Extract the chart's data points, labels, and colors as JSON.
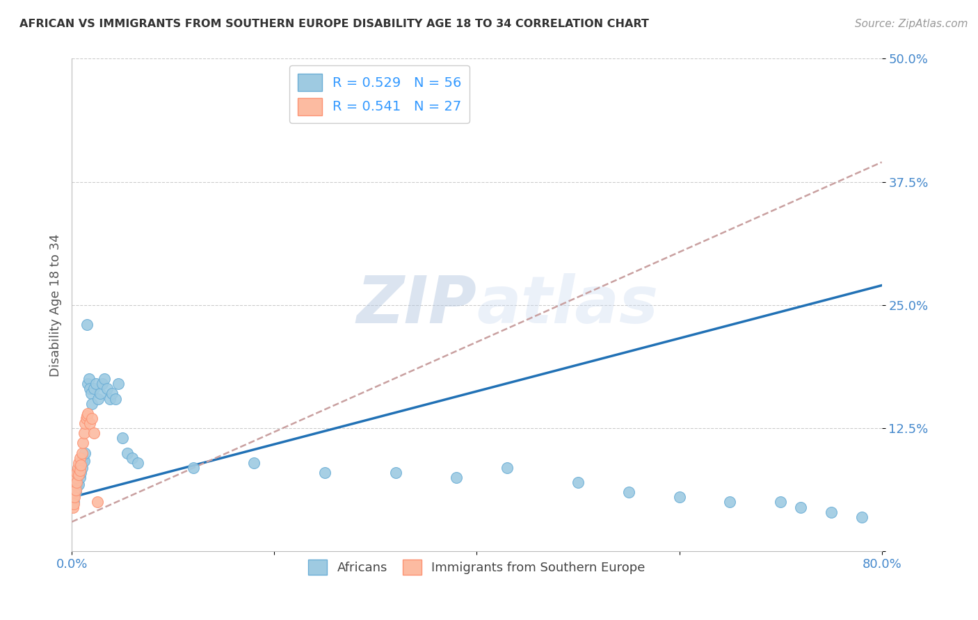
{
  "title": "AFRICAN VS IMMIGRANTS FROM SOUTHERN EUROPE DISABILITY AGE 18 TO 34 CORRELATION CHART",
  "source": "Source: ZipAtlas.com",
  "xlabel_africans": "Africans",
  "xlabel_immigrants": "Immigrants from Southern Europe",
  "ylabel": "Disability Age 18 to 34",
  "watermark": "ZIPatlas",
  "R_africans": 0.529,
  "N_africans": 56,
  "R_immigrants": 0.541,
  "N_immigrants": 27,
  "xlim": [
    0.0,
    0.8
  ],
  "ylim": [
    0.0,
    0.5
  ],
  "african_color": "#9ecae1",
  "african_edge_color": "#6baed6",
  "immigrant_color": "#fcbba1",
  "immigrant_edge_color": "#fc9272",
  "trend_african_color": "#2171b5",
  "trend_immigrant_color": "#c9a0a0",
  "background_color": "#ffffff",
  "grid_color": "#cccccc",
  "africans_x": [
    0.001,
    0.002,
    0.002,
    0.003,
    0.003,
    0.004,
    0.004,
    0.005,
    0.005,
    0.006,
    0.006,
    0.007,
    0.007,
    0.008,
    0.008,
    0.009,
    0.01,
    0.01,
    0.011,
    0.012,
    0.013,
    0.015,
    0.016,
    0.017,
    0.018,
    0.019,
    0.02,
    0.022,
    0.024,
    0.026,
    0.028,
    0.03,
    0.032,
    0.035,
    0.038,
    0.04,
    0.043,
    0.046,
    0.05,
    0.055,
    0.06,
    0.065,
    0.12,
    0.18,
    0.25,
    0.32,
    0.38,
    0.43,
    0.5,
    0.55,
    0.6,
    0.65,
    0.7,
    0.72,
    0.75,
    0.78
  ],
  "africans_y": [
    0.055,
    0.05,
    0.065,
    0.058,
    0.072,
    0.06,
    0.075,
    0.065,
    0.075,
    0.07,
    0.08,
    0.068,
    0.082,
    0.075,
    0.088,
    0.08,
    0.09,
    0.085,
    0.095,
    0.092,
    0.1,
    0.23,
    0.17,
    0.175,
    0.165,
    0.16,
    0.15,
    0.165,
    0.17,
    0.155,
    0.16,
    0.17,
    0.175,
    0.165,
    0.155,
    0.16,
    0.155,
    0.17,
    0.115,
    0.1,
    0.095,
    0.09,
    0.085,
    0.09,
    0.08,
    0.08,
    0.075,
    0.085,
    0.07,
    0.06,
    0.055,
    0.05,
    0.05,
    0.045,
    0.04,
    0.035
  ],
  "immigrants_x": [
    0.001,
    0.001,
    0.002,
    0.002,
    0.003,
    0.003,
    0.004,
    0.004,
    0.005,
    0.005,
    0.006,
    0.007,
    0.007,
    0.008,
    0.008,
    0.009,
    0.01,
    0.011,
    0.012,
    0.013,
    0.014,
    0.015,
    0.016,
    0.018,
    0.02,
    0.022,
    0.025
  ],
  "immigrants_y": [
    0.045,
    0.055,
    0.048,
    0.06,
    0.055,
    0.068,
    0.062,
    0.075,
    0.07,
    0.08,
    0.085,
    0.078,
    0.09,
    0.082,
    0.095,
    0.088,
    0.1,
    0.11,
    0.12,
    0.13,
    0.135,
    0.138,
    0.14,
    0.13,
    0.135,
    0.12,
    0.05
  ],
  "african_trend_x0": 0.0,
  "african_trend_y0": 0.055,
  "african_trend_x1": 0.8,
  "african_trend_y1": 0.27,
  "immigrant_trend_x0": 0.0,
  "immigrant_trend_y0": 0.03,
  "immigrant_trend_x1": 0.8,
  "immigrant_trend_y1": 0.395
}
